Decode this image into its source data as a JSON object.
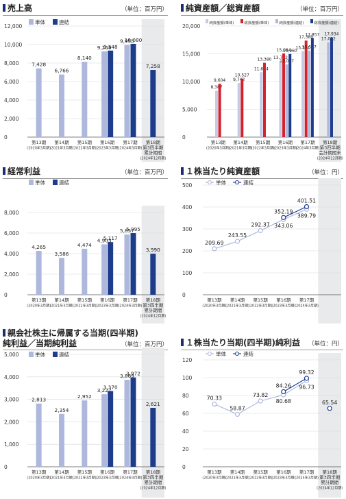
{
  "colors": {
    "single": "#aeb8dc",
    "consolidated": "#1d3c8c",
    "red": "#d3232e",
    "lightblue": "#c5cbe5",
    "shade": "#e9eaec"
  },
  "panels": [
    {
      "title": "売上高",
      "unit": "（単位：百万円）",
      "chart_data": {
        "type": "bar",
        "categories": [
          [
            "第13期",
            "(2020年3月期)"
          ],
          [
            "第14期",
            "(2021年3月期)"
          ],
          [
            "第15期",
            "(2022年3月期)"
          ],
          [
            "第16期",
            "(2023年3月期)"
          ],
          [
            "第17期",
            "(2024年3月期)"
          ],
          [
            "第18期",
            "第3四半期",
            "累計期間",
            "(2024年12月期)"
          ]
        ],
        "ylim": [
          0,
          12000
        ],
        "yticks": [
          "0",
          "2,000",
          "4,000",
          "6,000",
          "8,000",
          "10,000",
          "12,000"
        ],
        "legend": [
          "単体",
          "連結"
        ],
        "series": [
          {
            "name": "単体",
            "values": [
              7428,
              6766,
              8140,
              9269,
              9955,
              null
            ],
            "labels": [
              "7,428",
              "6,766",
              "8,140",
              "9,269",
              "9,955",
              ""
            ]
          },
          {
            "name": "連結",
            "values": [
              null,
              null,
              null,
              9348,
              10080,
              7258
            ],
            "labels": [
              "",
              "",
              "",
              "9,348",
              "10,080",
              "7,258"
            ]
          }
        ]
      }
    },
    {
      "title": "純資産額／総資産額",
      "unit": "（単位：百万円）",
      "chart_data": {
        "type": "bar",
        "categories": [
          [
            "第13期",
            "(2020年3月期)"
          ],
          [
            "第14期",
            "(2021年3月期)"
          ],
          [
            "第15期",
            "(2022年3月期)"
          ],
          [
            "第16期",
            "(2023年3月期)"
          ],
          [
            "第17期",
            "(2024年3月期)"
          ],
          [
            "第18期",
            "第3四半期",
            "会計期間末",
            "(2024年12月期)"
          ]
        ],
        "ylim": [
          0,
          20000
        ],
        "yticks": [
          "0",
          "5,000",
          "10,000",
          "15,000",
          "20,000"
        ],
        "legend": [
          "純資産額(単体)",
          "総資産額(単体)",
          "純資産額(連結)",
          "総資産額(連結)"
        ],
        "series": [
          {
            "name": "純資産額(単体)",
            "values": [
              8387,
              9742,
              11694,
              13722,
              15501,
              null
            ],
            "labels": [
              "8,387",
              "9,742",
              "11,694",
              "13,722",
              "15,501",
              ""
            ]
          },
          {
            "name": "総資産額(単体)",
            "values": [
              9604,
              10527,
              13380,
              15064,
              17380,
              null
            ],
            "labels": [
              "9,604",
              "10,527",
              "13,380",
              "15,064",
              "17,380",
              ""
            ]
          },
          {
            "name": "純資産額(連結)",
            "values": [
              null,
              null,
              null,
              13087,
              15597,
              17082
            ],
            "labels": [
              "",
              "",
              "",
              "13,087",
              "15,597",
              "17,082"
            ]
          },
          {
            "name": "総資産額(連結)",
            "values": [
              null,
              null,
              null,
              14960,
              17857,
              17934
            ],
            "labels": [
              "",
              "",
              "",
              "14,960",
              "17,857",
              "17,934"
            ]
          }
        ]
      }
    },
    {
      "title": "経常利益",
      "unit": "（単位：百万円）",
      "chart_data": {
        "type": "bar",
        "categories": [
          [
            "第13期",
            "(2020年3月期)"
          ],
          [
            "第14期",
            "(2021年3月期)"
          ],
          [
            "第15期",
            "(2022年3月期)"
          ],
          [
            "第16期",
            "(2023年3月期)"
          ],
          [
            "第17期",
            "(2024年3月期)"
          ],
          [
            "第18期",
            "第3四半期",
            "累計期間",
            "(2024年12月期)"
          ]
        ],
        "ylim": [
          0,
          8000
        ],
        "yticks": [
          "0",
          "2,000",
          "4,000",
          "6,000",
          "8,000"
        ],
        "legend": [
          "単体",
          "連結"
        ],
        "series": [
          {
            "name": "単体",
            "values": [
              4265,
              3586,
              4474,
              4903,
              5857,
              null
            ],
            "labels": [
              "4,265",
              "3,586",
              "4,474",
              "4,903",
              "5,857",
              ""
            ]
          },
          {
            "name": "連結",
            "values": [
              null,
              null,
              null,
              5117,
              5995,
              3990
            ],
            "labels": [
              "",
              "",
              "",
              "5,117",
              "5,995",
              "3,990"
            ]
          }
        ]
      }
    },
    {
      "title": "１株当たり純資産額",
      "unit": "（単位：円）",
      "chart_data": {
        "type": "line",
        "categories": [
          [
            "第13期",
            "(2020年3月期)"
          ],
          [
            "第14期",
            "(2021年3月期)"
          ],
          [
            "第15期",
            "(2022年3月期)"
          ],
          [
            "第16期",
            "(2023年3月期)"
          ],
          [
            "第17期",
            "(2024年3月期)"
          ]
        ],
        "ylim": [
          0,
          500
        ],
        "yticks": [
          "0",
          "100",
          "200",
          "300",
          "400",
          "500"
        ],
        "legend": [
          "単体",
          "連結"
        ],
        "series": [
          {
            "name": "単体",
            "values": [
              209.69,
              243.55,
              292.37,
              343.06,
              389.79
            ],
            "labels": [
              "209.69",
              "243.55",
              "292.37",
              "343.06",
              "389.79"
            ]
          },
          {
            "name": "連結",
            "values": [
              null,
              null,
              null,
              352.19,
              401.51
            ],
            "labels": [
              "",
              "",
              "",
              "352.19",
              "401.51"
            ]
          }
        ]
      }
    },
    {
      "title": "親会社株主に帰属する当期(四半期)",
      "title2": "純利益／当期純利益",
      "unit": "（単位：百万円）",
      "chart_data": {
        "type": "bar",
        "categories": [
          [
            "第13期",
            "(2020年3月期)"
          ],
          [
            "第14期",
            "(2021年3月期)"
          ],
          [
            "第15期",
            "(2022年3月期)"
          ],
          [
            "第16期",
            "(2023年3月期)"
          ],
          [
            "第17期",
            "(2024年3月期)"
          ],
          [
            "第18期",
            "第3四半期",
            "累計期間",
            "(2024年12月期)"
          ]
        ],
        "ylim": [
          0,
          5000
        ],
        "yticks": [
          "0",
          "1,000",
          "2,000",
          "3,000",
          "4,000",
          "5,000"
        ],
        "legend": [
          "単体",
          "連結"
        ],
        "series": [
          {
            "name": "単体",
            "values": [
              2813,
              2354,
              2952,
              3227,
              3869,
              null
            ],
            "labels": [
              "2,813",
              "2,354",
              "2,952",
              "3,227",
              "3,869",
              ""
            ]
          },
          {
            "name": "連結",
            "values": [
              null,
              null,
              null,
              3370,
              3972,
              2621
            ],
            "labels": [
              "",
              "",
              "",
              "3,370",
              "3,972",
              "2,621"
            ]
          }
        ]
      }
    },
    {
      "title": "１株当たり当期(四半期)純利益",
      "unit": "（単位：円）",
      "chart_data": {
        "type": "line",
        "categories": [
          [
            "第13期",
            "(2020年3月期)"
          ],
          [
            "第14期",
            "(2021年3月期)"
          ],
          [
            "第15期",
            "(2022年3月期)"
          ],
          [
            "第16期",
            "(2023年3月期)"
          ],
          [
            "第17期",
            "(2024年3月期)"
          ],
          [
            "第18期",
            "第3四半期",
            "累計期間",
            "(2024年12月期)"
          ]
        ],
        "ylim": [
          0,
          120
        ],
        "yticks": [
          "0",
          "20",
          "40",
          "60",
          "80",
          "100",
          "120"
        ],
        "legend": [
          "単体",
          "連結"
        ],
        "series": [
          {
            "name": "単体",
            "values": [
              70.33,
              58.87,
              73.82,
              80.68,
              96.73,
              null
            ],
            "labels": [
              "70.33",
              "58.87",
              "73.82",
              "80.68",
              "96.73",
              ""
            ]
          },
          {
            "name": "連結",
            "values": [
              null,
              null,
              null,
              84.26,
              99.32,
              65.54
            ],
            "labels": [
              "",
              "",
              "",
              "84.26",
              "99.32",
              "65.54"
            ]
          }
        ]
      }
    }
  ]
}
